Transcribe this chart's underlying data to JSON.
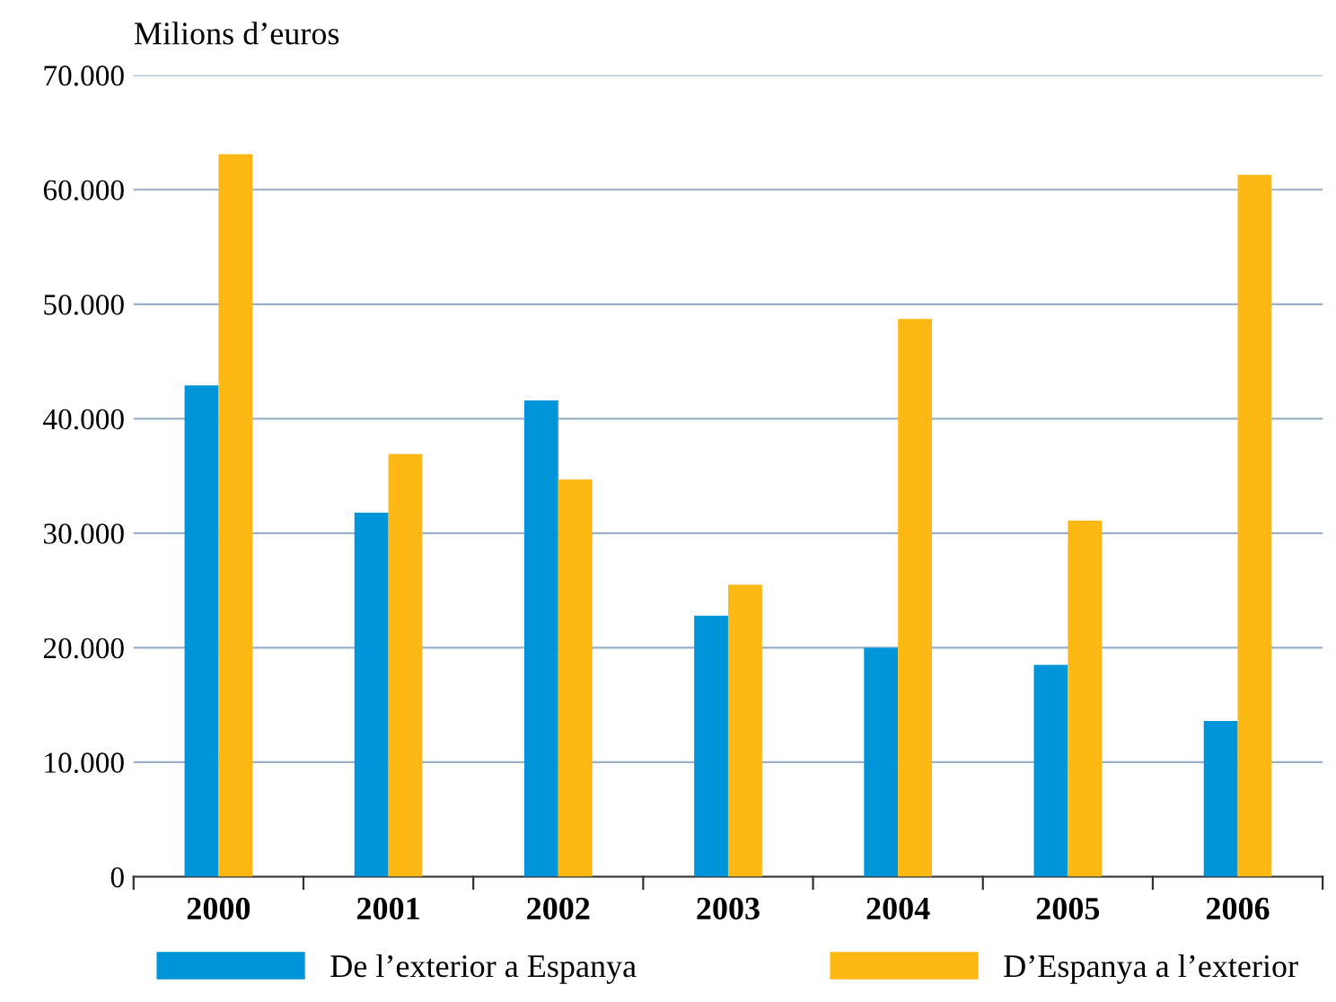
{
  "chart_data": {
    "type": "bar",
    "ylabel": "Milions d’euros",
    "categories": [
      "2000",
      "2001",
      "2002",
      "2003",
      "2004",
      "2005",
      "2006"
    ],
    "series": [
      {
        "name": "De l’exterior a Espanya",
        "color": "#0095d9",
        "values": [
          42900,
          31800,
          41600,
          22800,
          20000,
          18500,
          13600
        ]
      },
      {
        "name": "D’Espanya a l’exterior",
        "color": "#fdb813",
        "values": [
          63100,
          36900,
          34700,
          25500,
          48700,
          31100,
          61300
        ]
      }
    ],
    "ylim": [
      0,
      70000
    ],
    "yticks": [
      {
        "value": 0,
        "label": "0"
      },
      {
        "value": 10000,
        "label": "10.000"
      },
      {
        "value": 20000,
        "label": "20.000"
      },
      {
        "value": 30000,
        "label": "30.000"
      },
      {
        "value": 40000,
        "label": "40.000"
      },
      {
        "value": 50000,
        "label": "50.000"
      },
      {
        "value": 60000,
        "label": "60.000"
      },
      {
        "value": 70000,
        "label": "70.000"
      }
    ],
    "grid": "y",
    "legend": "bottom"
  }
}
